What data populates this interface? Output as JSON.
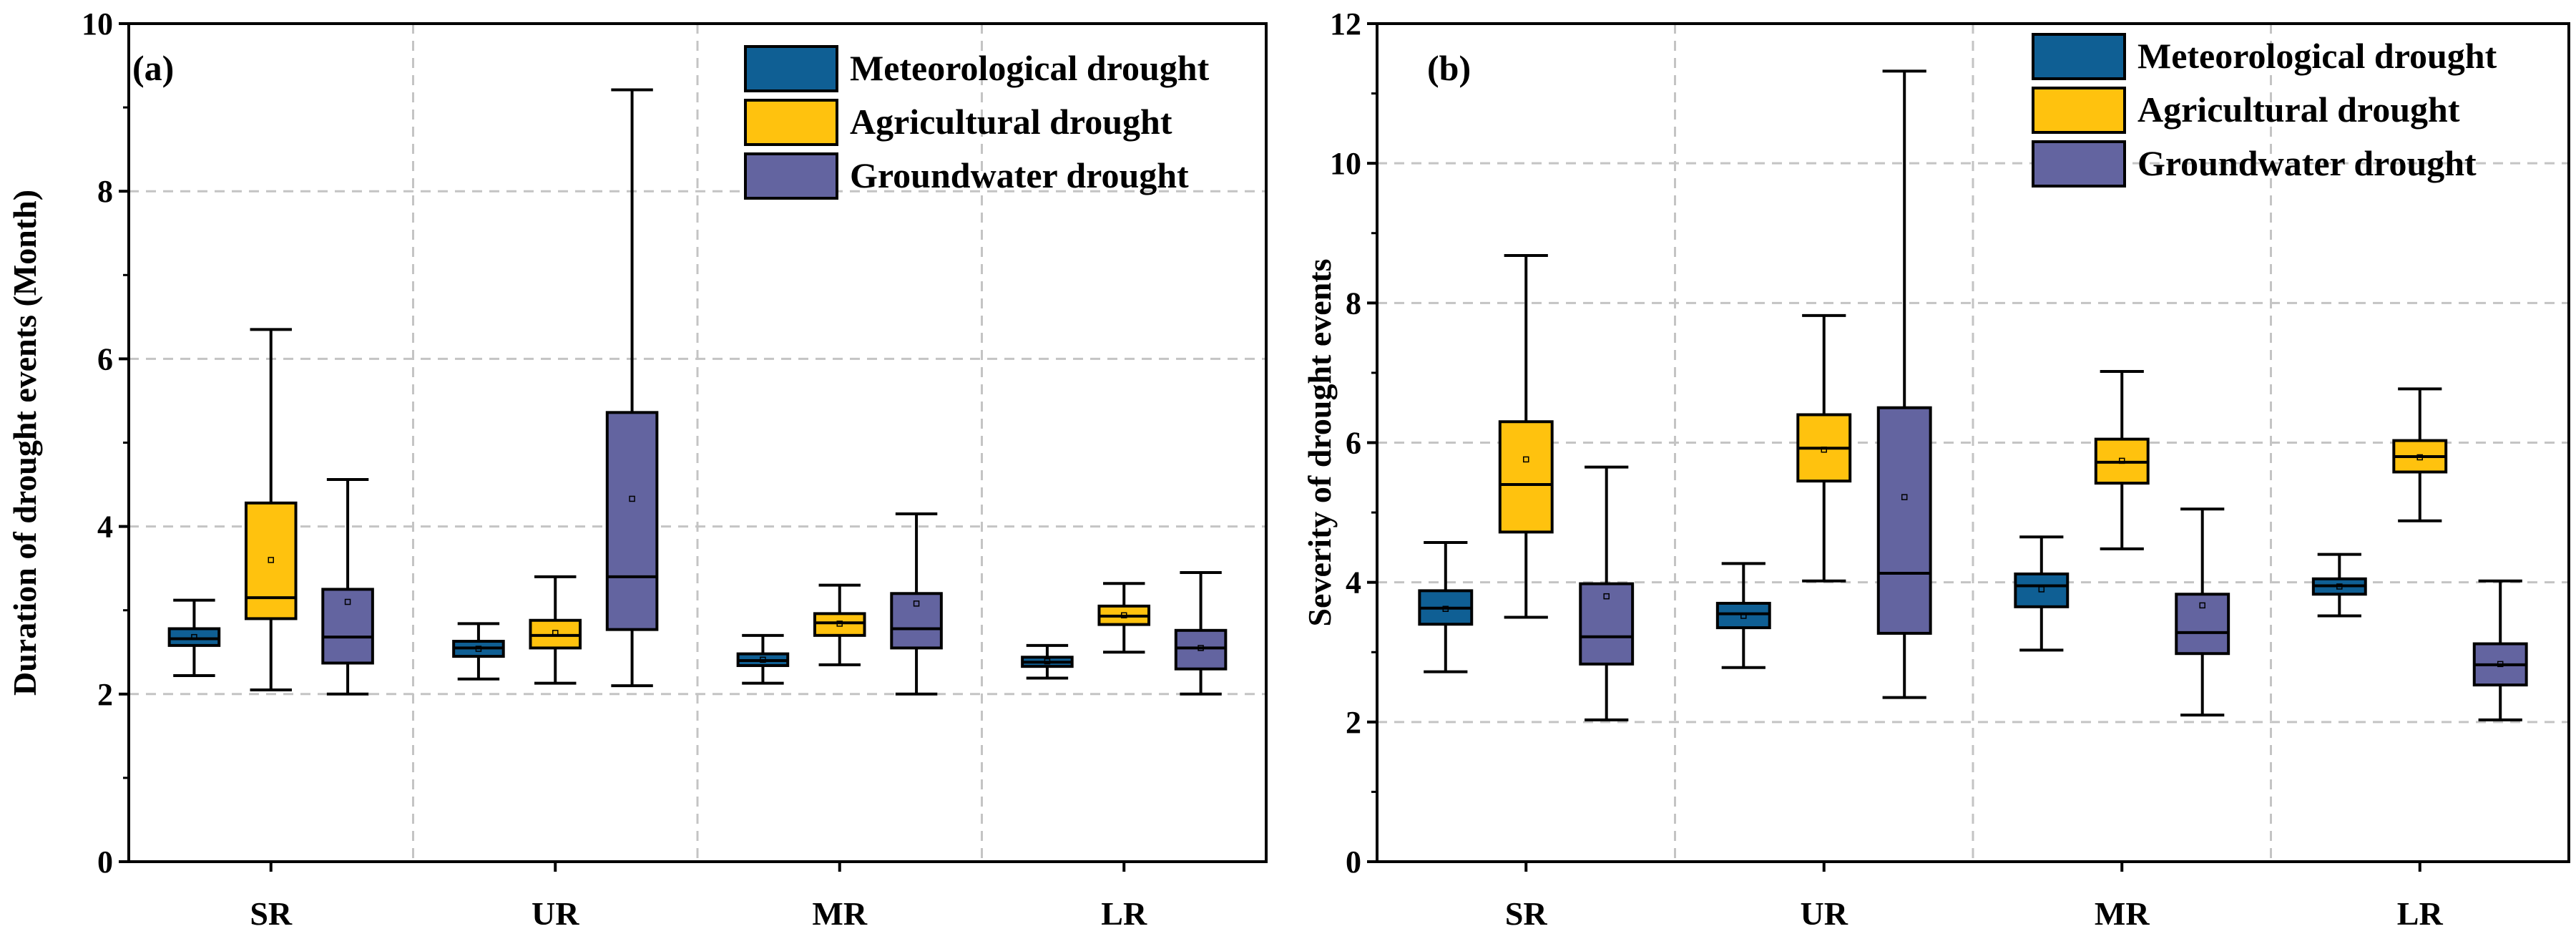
{
  "chart_data": [
    {
      "type": "box",
      "panel_label": "(a)",
      "ylabel": "Duration of drought events (Month)",
      "xlabel": "",
      "ylim": [
        0,
        10
      ],
      "y_ticks": [
        "0",
        "2",
        "4",
        "6",
        "8",
        "10"
      ],
      "categories": [
        "SR",
        "UR",
        "MR",
        "LR"
      ],
      "grid": "dashed",
      "legend_position": "top-right",
      "series": [
        {
          "name": "Meteorological drought",
          "color": "#0f5f94",
          "boxes": [
            {
              "min": 2.22,
              "q1": 2.58,
              "median": 2.66,
              "q3": 2.78,
              "max": 3.12,
              "mean": 2.68
            },
            {
              "min": 2.18,
              "q1": 2.45,
              "median": 2.55,
              "q3": 2.63,
              "max": 2.84,
              "mean": 2.54
            },
            {
              "min": 2.13,
              "q1": 2.34,
              "median": 2.4,
              "q3": 2.48,
              "max": 2.7,
              "mean": 2.41
            },
            {
              "min": 2.19,
              "q1": 2.33,
              "median": 2.38,
              "q3": 2.44,
              "max": 2.58,
              "mean": 2.39
            }
          ]
        },
        {
          "name": "Agricultural drought",
          "color": "#ffc20e",
          "boxes": [
            {
              "min": 2.05,
              "q1": 2.9,
              "median": 3.15,
              "q3": 4.28,
              "max": 6.35,
              "mean": 3.6
            },
            {
              "min": 2.13,
              "q1": 2.55,
              "median": 2.7,
              "q3": 2.88,
              "max": 3.4,
              "mean": 2.73
            },
            {
              "min": 2.35,
              "q1": 2.7,
              "median": 2.85,
              "q3": 2.96,
              "max": 3.3,
              "mean": 2.84
            },
            {
              "min": 2.5,
              "q1": 2.83,
              "median": 2.93,
              "q3": 3.05,
              "max": 3.32,
              "mean": 2.94
            }
          ]
        },
        {
          "name": "Groundwater drought",
          "color": "#6364a0",
          "boxes": [
            {
              "min": 2.0,
              "q1": 2.37,
              "median": 2.68,
              "q3": 3.25,
              "max": 4.56,
              "mean": 3.1
            },
            {
              "min": 2.1,
              "q1": 2.77,
              "median": 3.4,
              "q3": 5.36,
              "max": 9.21,
              "mean": 4.33
            },
            {
              "min": 2.0,
              "q1": 2.55,
              "median": 2.78,
              "q3": 3.2,
              "max": 4.15,
              "mean": 3.08
            },
            {
              "min": 2.0,
              "q1": 2.3,
              "median": 2.55,
              "q3": 2.76,
              "max": 3.45,
              "mean": 2.55
            }
          ]
        }
      ]
    },
    {
      "type": "box",
      "panel_label": "(b)",
      "ylabel": "Severity of drought events",
      "xlabel": "",
      "ylim": [
        0,
        12
      ],
      "y_ticks": [
        "0",
        "2",
        "4",
        "6",
        "8",
        "10",
        "12"
      ],
      "categories": [
        "SR",
        "UR",
        "MR",
        "LR"
      ],
      "grid": "dashed",
      "legend_position": "top-right",
      "series": [
        {
          "name": "Meteorological drought",
          "color": "#0f5f94",
          "boxes": [
            {
              "min": 2.72,
              "q1": 3.4,
              "median": 3.63,
              "q3": 3.88,
              "max": 4.57,
              "mean": 3.62
            },
            {
              "min": 2.78,
              "q1": 3.35,
              "median": 3.55,
              "q3": 3.7,
              "max": 4.27,
              "mean": 3.52
            },
            {
              "min": 3.03,
              "q1": 3.65,
              "median": 3.95,
              "q3": 4.12,
              "max": 4.65,
              "mean": 3.9
            },
            {
              "min": 3.52,
              "q1": 3.83,
              "median": 3.95,
              "q3": 4.05,
              "max": 4.4,
              "mean": 3.94
            }
          ]
        },
        {
          "name": "Agricultural drought",
          "color": "#ffc20e",
          "boxes": [
            {
              "min": 3.5,
              "q1": 4.72,
              "median": 5.4,
              "q3": 6.3,
              "max": 8.68,
              "mean": 5.76
            },
            {
              "min": 4.02,
              "q1": 5.45,
              "median": 5.92,
              "q3": 6.4,
              "max": 7.82,
              "mean": 5.9
            },
            {
              "min": 4.48,
              "q1": 5.42,
              "median": 5.72,
              "q3": 6.05,
              "max": 7.02,
              "mean": 5.74
            },
            {
              "min": 4.88,
              "q1": 5.58,
              "median": 5.8,
              "q3": 6.03,
              "max": 6.77,
              "mean": 5.79
            }
          ]
        },
        {
          "name": "Groundwater drought",
          "color": "#6364a0",
          "boxes": [
            {
              "min": 2.03,
              "q1": 2.83,
              "median": 3.22,
              "q3": 3.98,
              "max": 5.65,
              "mean": 3.8
            },
            {
              "min": 2.35,
              "q1": 3.27,
              "median": 4.13,
              "q3": 6.5,
              "max": 11.32,
              "mean": 5.22
            },
            {
              "min": 2.1,
              "q1": 2.98,
              "median": 3.28,
              "q3": 3.83,
              "max": 5.05,
              "mean": 3.67
            },
            {
              "min": 2.03,
              "q1": 2.53,
              "median": 2.82,
              "q3": 3.12,
              "max": 4.02,
              "mean": 2.83
            }
          ]
        }
      ]
    }
  ]
}
